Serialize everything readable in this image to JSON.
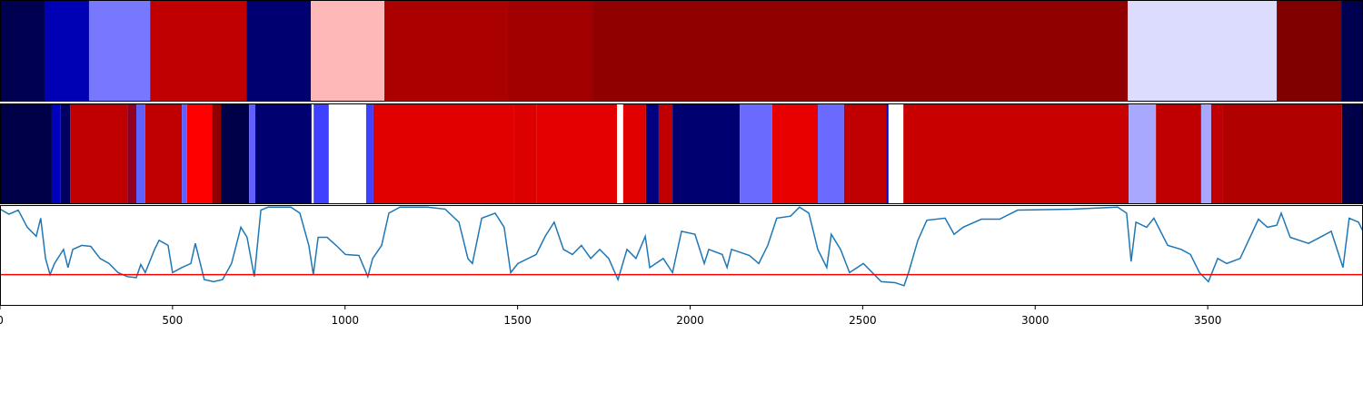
{
  "chart_data": [
    {
      "type": "strip",
      "xlim": [
        0,
        3950
      ],
      "bins": [
        0,
        129,
        258,
        435,
        714,
        901,
        1114,
        1472,
        1717,
        3268,
        3700,
        3887,
        3950
      ],
      "colors": [
        "#000050",
        "#0000b4",
        "#7878ff",
        "#c00000",
        "#000070",
        "#ffb8b8",
        "#ab0000",
        "#a20000",
        "#900000",
        "#dcdcff",
        "#800000",
        "#000050"
      ]
    },
    {
      "type": "strip",
      "xlim": [
        0,
        3950
      ],
      "bins": [
        0,
        150,
        176,
        203,
        369,
        395,
        421,
        527,
        542,
        614,
        640,
        722,
        740,
        903,
        909,
        953,
        1061,
        1082,
        1488,
        1554,
        1788,
        1806,
        1872,
        1909,
        1949,
        2144,
        2238,
        2370,
        2446,
        2568,
        2575,
        2618,
        3271,
        3350,
        3481,
        3510,
        3542,
        3889,
        3950
      ],
      "colors": [
        "#000048",
        "#0000c0",
        "#000060",
        "#c00000",
        "#900020",
        "#6060ff",
        "#c00000",
        "#6060ff",
        "#ff0000",
        "#900000",
        "#000048",
        "#6060ff",
        "#000070",
        "#ffffff",
        "#4040ff",
        "#ffffff",
        "#4040ff",
        "#e00000",
        "#dd0000",
        "#e40000",
        "#ffffff",
        "#e00000",
        "#000080",
        "#c00000",
        "#000070",
        "#6a6aff",
        "#e80000",
        "#6a6aff",
        "#c00000",
        "#0000c0",
        "#ffffff",
        "#c80000",
        "#a8a8ff",
        "#c00000",
        "#a8a8ff",
        "#c00000",
        "#b00000",
        "#000048"
      ]
    },
    {
      "type": "line",
      "xlim": [
        0,
        3950
      ],
      "ylim": [
        0,
        1
      ],
      "xticks": [
        0,
        500,
        1000,
        1500,
        2000,
        2500,
        3000,
        3500
      ],
      "color": "#1f77b4",
      "x": [
        0,
        26,
        53,
        79,
        105,
        118,
        132,
        145,
        158,
        184,
        197,
        211,
        237,
        263,
        290,
        316,
        342,
        369,
        395,
        408,
        421,
        448,
        461,
        487,
        500,
        527,
        553,
        566,
        592,
        619,
        645,
        671,
        698,
        716,
        737,
        756,
        777,
        843,
        869,
        895,
        908,
        922,
        948,
        974,
        1001,
        1040,
        1066,
        1080,
        1106,
        1127,
        1159,
        1238,
        1290,
        1330,
        1356,
        1369,
        1396,
        1435,
        1461,
        1480,
        1501,
        1554,
        1580,
        1606,
        1633,
        1659,
        1685,
        1712,
        1738,
        1764,
        1791,
        1817,
        1843,
        1870,
        1883,
        1922,
        1949,
        1975,
        2014,
        2041,
        2054,
        2093,
        2107,
        2120,
        2146,
        2172,
        2199,
        2225,
        2251,
        2291,
        2317,
        2344,
        2370,
        2396,
        2409,
        2436,
        2462,
        2502,
        2528,
        2554,
        2594,
        2620,
        2633,
        2660,
        2686,
        2739,
        2765,
        2791,
        2844,
        2897,
        2949,
        3107,
        3239,
        3265,
        3278,
        3292,
        3323,
        3344,
        3384,
        3423,
        3450,
        3476,
        3502,
        3529,
        3555,
        3594,
        3647,
        3673,
        3700,
        3713,
        3739,
        3792,
        3831,
        3858,
        3892,
        3910,
        3937,
        3950
      ],
      "values": [
        0.96,
        0.91,
        0.95,
        0.78,
        0.69,
        0.87,
        0.47,
        0.31,
        0.42,
        0.56,
        0.38,
        0.56,
        0.6,
        0.59,
        0.47,
        0.42,
        0.33,
        0.29,
        0.28,
        0.41,
        0.33,
        0.56,
        0.65,
        0.6,
        0.33,
        0.38,
        0.42,
        0.62,
        0.26,
        0.24,
        0.26,
        0.42,
        0.78,
        0.68,
        0.29,
        0.95,
        0.98,
        0.98,
        0.92,
        0.6,
        0.31,
        0.68,
        0.68,
        0.6,
        0.51,
        0.5,
        0.29,
        0.47,
        0.6,
        0.92,
        0.98,
        0.98,
        0.96,
        0.83,
        0.47,
        0.42,
        0.87,
        0.92,
        0.78,
        0.33,
        0.42,
        0.51,
        0.69,
        0.83,
        0.56,
        0.51,
        0.6,
        0.47,
        0.56,
        0.47,
        0.26,
        0.56,
        0.47,
        0.69,
        0.38,
        0.47,
        0.33,
        0.74,
        0.71,
        0.42,
        0.56,
        0.51,
        0.38,
        0.56,
        0.53,
        0.5,
        0.42,
        0.6,
        0.87,
        0.89,
        0.98,
        0.92,
        0.56,
        0.38,
        0.71,
        0.56,
        0.33,
        0.42,
        0.33,
        0.24,
        0.23,
        0.2,
        0.33,
        0.65,
        0.85,
        0.87,
        0.71,
        0.78,
        0.86,
        0.86,
        0.95,
        0.96,
        0.98,
        0.92,
        0.44,
        0.83,
        0.78,
        0.87,
        0.6,
        0.56,
        0.51,
        0.33,
        0.24,
        0.47,
        0.42,
        0.47,
        0.86,
        0.78,
        0.8,
        0.92,
        0.68,
        0.62,
        0.69,
        0.74,
        0.38,
        0.87,
        0.83,
        0.74
      ],
      "threshold": 0.31,
      "threshold_color": "#ff0000"
    }
  ]
}
